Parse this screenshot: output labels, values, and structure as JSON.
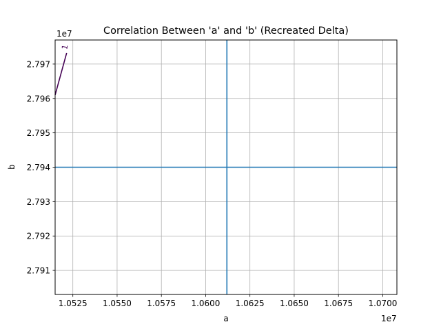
{
  "chart_data": {
    "type": "line",
    "title": "Correlation Between 'a' and 'b' (Recreated Delta)",
    "xlabel": "a",
    "ylabel": "b",
    "x_offset_label": "1e7",
    "y_offset_label": "1e7",
    "xlim": [
      1.0515,
      1.0708
    ],
    "ylim": [
      2.7903,
      2.7977
    ],
    "x_ticks": [
      1.0525,
      1.055,
      1.0575,
      1.06,
      1.0625,
      1.065,
      1.0675,
      1.07
    ],
    "x_tick_labels": [
      "1.0525",
      "1.0550",
      "1.0575",
      "1.0600",
      "1.0625",
      "1.0650",
      "1.0675",
      "1.0700"
    ],
    "y_ticks": [
      2.791,
      2.792,
      2.793,
      2.794,
      2.795,
      2.796,
      2.797
    ],
    "y_tick_labels": [
      "2.791",
      "2.792",
      "2.793",
      "2.794",
      "2.795",
      "2.796",
      "2.797"
    ],
    "grid": true,
    "reference_lines": {
      "vertical_x": 1.0612,
      "horizontal_y": 2.794,
      "color": "#1f77b4"
    },
    "series": [
      {
        "color": "#440154",
        "x": [
          1.0515,
          1.05215
        ],
        "y": [
          2.7961,
          2.79732
        ],
        "contour_label": "1"
      }
    ]
  }
}
